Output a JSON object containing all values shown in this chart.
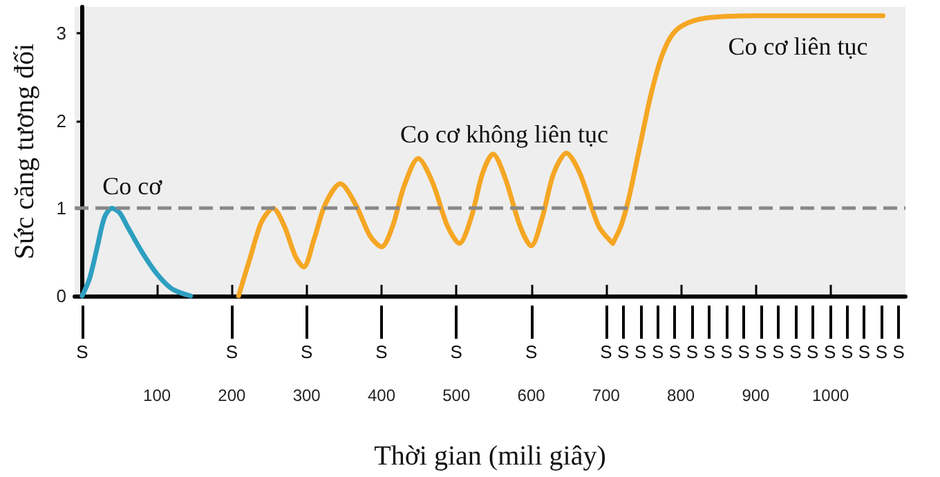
{
  "chart_data": {
    "type": "line",
    "xlabel": "Thời gian (mili giây)",
    "ylabel": "Sức căng tương đối",
    "xlim": [
      -10,
      1100
    ],
    "xticks": [
      100,
      200,
      300,
      400,
      500,
      600,
      700,
      800,
      900,
      1000
    ],
    "ylim": [
      0,
      3.3
    ],
    "yticks": [
      0,
      1,
      2,
      3
    ],
    "grid": false,
    "legend": false,
    "marker": "none",
    "line_style": "solid",
    "series": [
      {
        "name": "Co cơ",
        "color": "#2e9fc0",
        "x": [
          0,
          10,
          20,
          30,
          40,
          50,
          60,
          80,
          100,
          120,
          145
        ],
        "values": [
          0,
          0.2,
          0.55,
          0.9,
          1.0,
          0.95,
          0.8,
          0.5,
          0.25,
          0.08,
          0
        ]
      },
      {
        "name": "Co cơ không liên tục",
        "color": "#f5a623",
        "x": [
          209,
          225,
          240,
          255,
          270,
          285,
          296,
          310,
          325,
          345,
          365,
          385,
          400,
          415,
          430,
          449,
          468,
          488,
          504,
          520,
          535,
          549,
          565,
          585,
          600,
          615,
          630,
          647,
          665,
          690,
          709
        ],
        "values": [
          0,
          0.45,
          0.85,
          1.0,
          0.8,
          0.45,
          0.33,
          0.65,
          1.05,
          1.28,
          1.05,
          0.68,
          0.56,
          0.8,
          1.25,
          1.57,
          1.3,
          0.8,
          0.6,
          0.9,
          1.4,
          1.62,
          1.35,
          0.8,
          0.57,
          0.9,
          1.4,
          1.63,
          1.4,
          0.8,
          0.6
        ]
      },
      {
        "name": "Co cơ liên tục",
        "color": "#f5a623",
        "x": [
          709,
          720,
          730,
          745,
          760,
          775,
          790,
          810,
          840,
          900,
          1000,
          1070
        ],
        "values": [
          0.6,
          0.8,
          1.1,
          1.7,
          2.3,
          2.75,
          3.0,
          3.12,
          3.18,
          3.2,
          3.2,
          3.2
        ]
      }
    ],
    "ref_lines": [
      {
        "axis": "y",
        "value": 1,
        "label": null,
        "color": "#888888",
        "line_style": "dashed"
      },
      {
        "axis": "x",
        "value": 0,
        "label": "S"
      },
      {
        "axis": "x",
        "value": 200,
        "label": "S"
      },
      {
        "axis": "x",
        "value": 300,
        "label": "S"
      },
      {
        "axis": "x",
        "value": 400,
        "label": "S"
      },
      {
        "axis": "x",
        "value": 500,
        "label": "S"
      },
      {
        "axis": "x",
        "value": 600,
        "label": "S"
      },
      {
        "axis": "x",
        "value": 700,
        "label": "S"
      },
      {
        "axis": "x",
        "value": 723,
        "label": "S"
      },
      {
        "axis": "x",
        "value": 746,
        "label": "S"
      },
      {
        "axis": "x",
        "value": 769,
        "label": "S"
      },
      {
        "axis": "x",
        "value": 792,
        "label": "S"
      },
      {
        "axis": "x",
        "value": 815,
        "label": "S"
      },
      {
        "axis": "x",
        "value": 838,
        "label": "S"
      },
      {
        "axis": "x",
        "value": 861,
        "label": "S"
      },
      {
        "axis": "x",
        "value": 884,
        "label": "S"
      },
      {
        "axis": "x",
        "value": 907,
        "label": "S"
      },
      {
        "axis": "x",
        "value": 930,
        "label": "S"
      },
      {
        "axis": "x",
        "value": 953,
        "label": "S"
      },
      {
        "axis": "x",
        "value": 976,
        "label": "S"
      },
      {
        "axis": "x",
        "value": 999,
        "label": "S"
      },
      {
        "axis": "x",
        "value": 1022,
        "label": "S"
      },
      {
        "axis": "x",
        "value": 1045,
        "label": "S"
      },
      {
        "axis": "x",
        "value": 1068,
        "label": "S"
      },
      {
        "axis": "x",
        "value": 1091,
        "label": "S"
      }
    ]
  }
}
